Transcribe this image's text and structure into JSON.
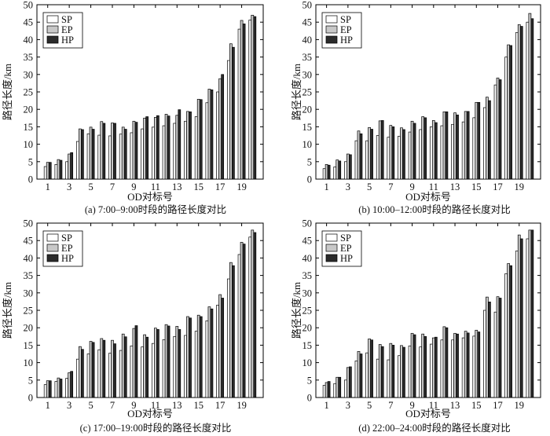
{
  "colors": {
    "SP": "#ffffff",
    "EP": "#c8c8c8",
    "HP": "#2b2b2b",
    "axis": "#000000"
  },
  "chart_data": [
    {
      "type": "bar",
      "caption": "(a) 7:00–9:00时段的路径长度对比",
      "xlabel": "OD对标号",
      "ylabel": "路径长度/km",
      "ylim": [
        0,
        50
      ],
      "yticks": [
        0,
        5,
        10,
        15,
        20,
        25,
        30,
        35,
        40,
        45,
        50
      ],
      "xticks": [
        1,
        3,
        5,
        7,
        9,
        11,
        13,
        15,
        17,
        19
      ],
      "categories": [
        1,
        2,
        3,
        4,
        5,
        6,
        7,
        8,
        9,
        10,
        11,
        12,
        13,
        14,
        15,
        16,
        17,
        18,
        19,
        20
      ],
      "legend": "top-left",
      "series": [
        {
          "name": "SP",
          "values": [
            3.6,
            4.2,
            5.0,
            10.8,
            13.0,
            12.6,
            12.4,
            12.9,
            13.3,
            14.4,
            14.9,
            15.3,
            16.0,
            16.6,
            17.9,
            21.9,
            25.0,
            34.0,
            43.0,
            45.6
          ]
        },
        {
          "name": "EP",
          "values": [
            4.8,
            5.6,
            7.2,
            14.4,
            14.9,
            16.5,
            16.1,
            14.9,
            16.6,
            17.5,
            17.7,
            18.6,
            18.3,
            19.4,
            22.9,
            25.8,
            28.8,
            38.8,
            45.5,
            47.0
          ]
        },
        {
          "name": "HP",
          "values": [
            4.8,
            5.4,
            7.6,
            14.2,
            14.3,
            16.0,
            16.0,
            14.3,
            16.3,
            17.9,
            18.2,
            18.1,
            19.9,
            19.3,
            22.8,
            25.6,
            30.0,
            37.8,
            44.5,
            46.6
          ]
        }
      ]
    },
    {
      "type": "bar",
      "caption": "(b) 10:00–12:00时段的路径长度对比",
      "xlabel": "OD对标号",
      "ylabel": "路径长度/km",
      "ylim": [
        0,
        50
      ],
      "yticks": [
        0,
        5,
        10,
        15,
        20,
        25,
        30,
        35,
        40,
        45,
        50
      ],
      "xticks": [
        1,
        3,
        5,
        7,
        9,
        11,
        13,
        15,
        17,
        19
      ],
      "categories": [
        1,
        2,
        3,
        4,
        5,
        6,
        7,
        8,
        9,
        10,
        11,
        12,
        13,
        14,
        15,
        16,
        17,
        18,
        19,
        20
      ],
      "legend": "top-left",
      "series": [
        {
          "name": "SP",
          "values": [
            3.0,
            3.5,
            5.0,
            11.0,
            11.0,
            12.5,
            12.0,
            12.3,
            13.5,
            14.2,
            15.0,
            15.3,
            15.7,
            16.4,
            17.6,
            20.5,
            27.0,
            35.0,
            42.0,
            45.0
          ]
        },
        {
          "name": "EP",
          "values": [
            4.2,
            5.5,
            7.2,
            13.8,
            14.8,
            16.7,
            15.4,
            14.7,
            16.6,
            17.9,
            16.8,
            19.3,
            19.0,
            19.4,
            22.0,
            23.5,
            29.0,
            38.5,
            44.3,
            47.5
          ]
        },
        {
          "name": "HP",
          "values": [
            4.0,
            5.2,
            7.0,
            13.0,
            14.3,
            16.8,
            15.0,
            14.2,
            16.0,
            17.6,
            16.2,
            19.3,
            18.4,
            19.4,
            22.0,
            22.5,
            28.5,
            38.3,
            43.8,
            46.0
          ]
        }
      ]
    },
    {
      "type": "bar",
      "caption": "(c) 17:00–19:00时段的路径长度对比",
      "xlabel": "OD对标号",
      "ylabel": "路径长度/km",
      "ylim": [
        0,
        50
      ],
      "yticks": [
        0,
        5,
        10,
        15,
        20,
        25,
        30,
        35,
        40,
        45,
        50
      ],
      "xticks": [
        1,
        3,
        5,
        7,
        9,
        11,
        13,
        15,
        17,
        19
      ],
      "categories": [
        1,
        2,
        3,
        4,
        5,
        6,
        7,
        8,
        9,
        10,
        11,
        12,
        13,
        14,
        15,
        16,
        17,
        18,
        19,
        20
      ],
      "legend": "top-left",
      "series": [
        {
          "name": "SP",
          "values": [
            3.7,
            4.6,
            5.5,
            11.0,
            12.5,
            13.7,
            12.7,
            13.5,
            14.8,
            14.5,
            15.5,
            16.6,
            17.5,
            17.8,
            19.0,
            22.0,
            26.5,
            34.0,
            41.0,
            46.0
          ]
        },
        {
          "name": "EP",
          "values": [
            4.8,
            5.6,
            7.1,
            14.6,
            16.1,
            16.9,
            16.4,
            18.2,
            19.8,
            18.0,
            19.9,
            20.9,
            20.4,
            23.2,
            23.6,
            26.0,
            29.5,
            38.7,
            44.5,
            48.0
          ]
        },
        {
          "name": "HP",
          "values": [
            4.8,
            5.3,
            7.5,
            13.8,
            15.8,
            16.4,
            15.4,
            17.4,
            20.6,
            17.3,
            19.5,
            20.5,
            19.5,
            22.8,
            23.2,
            25.4,
            28.5,
            37.8,
            44.0,
            47.3
          ]
        }
      ]
    },
    {
      "type": "bar",
      "caption": "(d) 22:00–24:00时段的路径长度对比",
      "xlabel": "OD对标号",
      "ylabel": "路径长度/km",
      "ylim": [
        0,
        50
      ],
      "yticks": [
        0,
        5,
        10,
        15,
        20,
        25,
        30,
        35,
        40,
        45,
        50
      ],
      "xticks": [
        1,
        3,
        5,
        7,
        9,
        11,
        13,
        15,
        17,
        19
      ],
      "categories": [
        1,
        2,
        3,
        4,
        5,
        6,
        7,
        8,
        9,
        10,
        11,
        12,
        13,
        14,
        15,
        16,
        17,
        18,
        19,
        20
      ],
      "legend": "top-left",
      "series": [
        {
          "name": "SP",
          "values": [
            3.5,
            4.0,
            5.0,
            10.5,
            12.8,
            11.0,
            10.8,
            12.0,
            14.8,
            14.5,
            15.3,
            16.5,
            16.5,
            17.1,
            17.6,
            25.0,
            24.5,
            35.5,
            42.0,
            45.5
          ]
        },
        {
          "name": "EP",
          "values": [
            4.3,
            5.8,
            8.6,
            13.2,
            16.8,
            15.2,
            15.5,
            14.9,
            18.4,
            18.2,
            17.1,
            20.3,
            18.4,
            19.0,
            19.3,
            28.8,
            28.9,
            38.4,
            46.6,
            48.0
          ]
        },
        {
          "name": "HP",
          "values": [
            4.6,
            5.8,
            8.8,
            12.5,
            16.5,
            14.6,
            15.0,
            14.4,
            18.0,
            17.5,
            17.3,
            20.0,
            18.2,
            18.5,
            18.8,
            27.4,
            28.5,
            37.8,
            45.5,
            48.0
          ]
        }
      ]
    }
  ]
}
